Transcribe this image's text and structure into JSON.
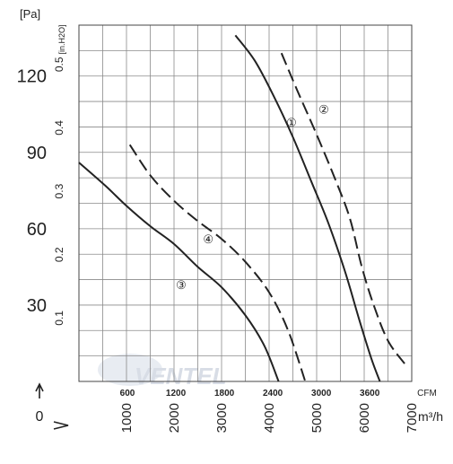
{
  "chart_data": {
    "type": "line",
    "title": "",
    "watermark": "VENTEL",
    "y_axis_left": {
      "unit_label": "[Pa]",
      "ticks": [
        "30",
        "60",
        "90",
        "120"
      ],
      "tick_values": [
        30,
        60,
        90,
        120
      ],
      "range": [
        0,
        140
      ]
    },
    "y_axis_secondary": {
      "unit_label": "[in.H2O]",
      "ticks": [
        "0.1",
        "0.2",
        "0.3",
        "0.4",
        "0.5"
      ],
      "tick_values": [
        0.1,
        0.2,
        0.3,
        0.4,
        0.5
      ]
    },
    "x_axis_primary": {
      "unit_label": "m³/h",
      "ticks": [
        "1000",
        "2000",
        "3000",
        "4000",
        "5000",
        "6000",
        "7000"
      ],
      "tick_values": [
        1000,
        2000,
        3000,
        4000,
        5000,
        6000,
        7000
      ],
      "range": [
        0,
        7000
      ]
    },
    "x_axis_secondary": {
      "unit_label": "CFM",
      "ticks": [
        "600",
        "1200",
        "1800",
        "2400",
        "3000",
        "3600"
      ],
      "tick_values": [
        600,
        1200,
        1800,
        2400,
        3000,
        3600
      ]
    },
    "origin_label": "0",
    "grid": true,
    "series": [
      {
        "name": "①",
        "style": "solid",
        "color": "#222222",
        "points": [
          [
            3290,
            136
          ],
          [
            3700,
            126
          ],
          [
            4100,
            112
          ],
          [
            4500,
            96
          ],
          [
            4900,
            78
          ],
          [
            5250,
            62
          ],
          [
            5600,
            43
          ],
          [
            5900,
            24
          ],
          [
            6150,
            9
          ],
          [
            6330,
            0
          ]
        ]
      },
      {
        "name": "②",
        "style": "dashed",
        "color": "#222222",
        "points": [
          [
            4260,
            129
          ],
          [
            4600,
            114
          ],
          [
            5000,
            97
          ],
          [
            5400,
            79
          ],
          [
            5700,
            64
          ],
          [
            5950,
            45
          ],
          [
            6200,
            30
          ],
          [
            6500,
            16
          ],
          [
            6850,
            7
          ]
        ]
      },
      {
        "name": "③",
        "style": "solid",
        "color": "#222222",
        "points": [
          [
            0,
            86
          ],
          [
            550,
            77
          ],
          [
            1000,
            69
          ],
          [
            1500,
            61
          ],
          [
            2000,
            54
          ],
          [
            2500,
            45
          ],
          [
            3000,
            37
          ],
          [
            3500,
            26
          ],
          [
            3900,
            14
          ],
          [
            4200,
            0
          ]
        ]
      },
      {
        "name": "④",
        "style": "dashed",
        "color": "#222222",
        "points": [
          [
            1070,
            93
          ],
          [
            1500,
            81
          ],
          [
            2000,
            71
          ],
          [
            2500,
            63
          ],
          [
            3000,
            56
          ],
          [
            3500,
            47
          ],
          [
            4000,
            35
          ],
          [
            4400,
            20
          ],
          [
            4760,
            0
          ]
        ]
      }
    ],
    "labels": [
      {
        "text": "①",
        "x": 4470,
        "y": 102
      },
      {
        "text": "②",
        "x": 5150,
        "y": 107
      },
      {
        "text": "③",
        "x": 2150,
        "y": 38
      },
      {
        "text": "④",
        "x": 2720,
        "y": 56
      }
    ]
  }
}
